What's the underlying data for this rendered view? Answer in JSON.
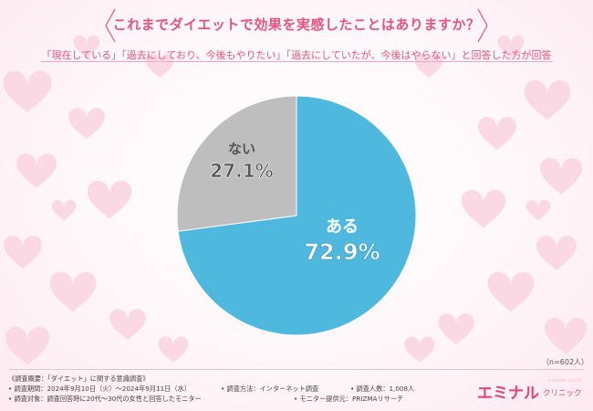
{
  "title": "これまでダイエットで効果を実感したことはありますか？",
  "subtitle": "「現在している」「過去にしており、今後もやりたい」「過去にしていたが、今後はやらない」と回答した方が回答",
  "n_label": "（n=602人）",
  "colors": {
    "accent": "#e2557f",
    "blue": "#4fb8df",
    "gray": "#bebebe"
  },
  "chart_data": {
    "type": "pie",
    "title": "これまでダイエットで効果を実感したことはありますか？",
    "slices": [
      {
        "label": "ある",
        "value": 72.9,
        "display": "72.9%",
        "color": "#4fb8df"
      },
      {
        "label": "ない",
        "value": 27.1,
        "display": "27.1%",
        "color": "#bebebe"
      }
    ],
    "start": "12 o'clock, clockwise"
  },
  "footer": {
    "survey_overview": "《調査概要：「ダイエット」に関する意識調査》",
    "period": "• 調査期間：2024年9月10日（火）～2024年9月11日（水）",
    "method": "• 調査方法：インターネット調査",
    "count": "• 調査人数：1,008人",
    "target": "• 調査対象：調査回答時に20代～30代の女性と回答したモニター",
    "provider": "• モニター提供元：PRIZMAリサーチ"
  },
  "logo": {
    "main": "エミナル",
    "sub": "クリニック",
    "tag": "eminal clinic"
  }
}
